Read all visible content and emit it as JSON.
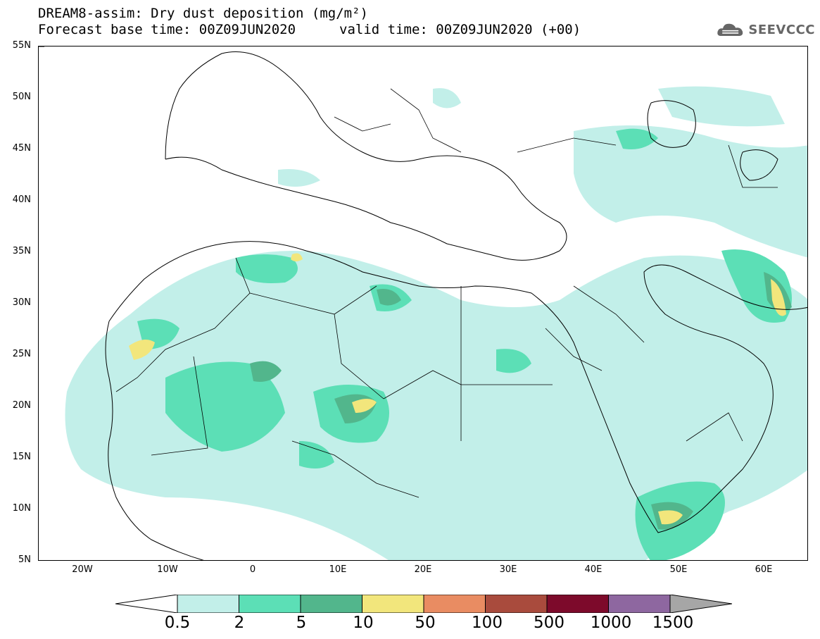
{
  "title": {
    "line1": "DREAM8-assim: Dry dust deposition (mg/m²)",
    "line2": "Forecast base time: 00Z09JUN2020",
    "valid": "valid time: 00Z09JUN2020 (+00)"
  },
  "logo": {
    "text": "SEEVCCC",
    "icon": "cloud-icon"
  },
  "map": {
    "projection": "lat-lon",
    "lon_range": [
      -25,
      65
    ],
    "lat_range": [
      5,
      55
    ],
    "lat_labels": [
      "55N",
      "50N",
      "45N",
      "40N",
      "35N",
      "30N",
      "25N",
      "20N",
      "15N",
      "10N",
      "5N"
    ],
    "lon_labels": [
      "20W",
      "10W",
      "0",
      "10E",
      "20E",
      "30E",
      "40E",
      "50E",
      "60E"
    ]
  },
  "legend": {
    "labels": [
      "0.5",
      "2",
      "5",
      "10",
      "50",
      "100",
      "500",
      "1000",
      "1500"
    ],
    "colors": [
      "#c2efe9",
      "#5cdfb6",
      "#52b68c",
      "#f2e67c",
      "#e98c62",
      "#a94b3d",
      "#7d0a2b",
      "#8e67a0"
    ],
    "under_color": "#ffffff",
    "over_color": "#a6a6a6"
  }
}
